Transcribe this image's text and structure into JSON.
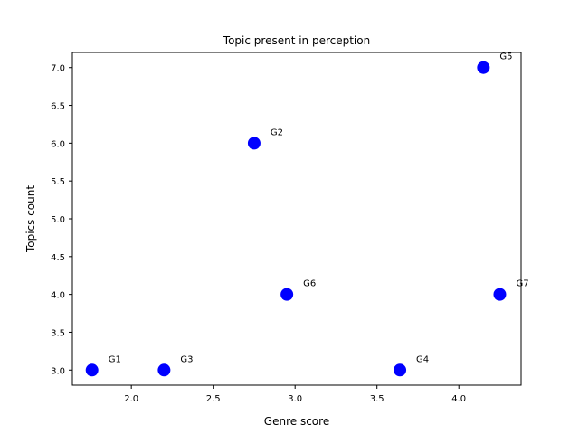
{
  "chart_data": {
    "type": "scatter",
    "title": "Topic present in perception",
    "xlabel": "Genre score",
    "ylabel": "Topics count",
    "xlim": [
      1.64,
      4.38
    ],
    "ylim": [
      2.8,
      7.2
    ],
    "xticks": [
      2.0,
      2.5,
      3.0,
      3.5,
      4.0
    ],
    "xtick_labels": [
      "2.0",
      "2.5",
      "3.0",
      "3.5",
      "4.0"
    ],
    "yticks": [
      3.0,
      3.5,
      4.0,
      4.5,
      5.0,
      5.5,
      6.0,
      6.5,
      7.0
    ],
    "ytick_labels": [
      "3.0",
      "3.5",
      "4.0",
      "4.5",
      "5.0",
      "5.5",
      "6.0",
      "6.5",
      "7.0"
    ],
    "grid": false,
    "legend": "none",
    "marker_color": "#0000ff",
    "points": [
      {
        "label": "G1",
        "x": 1.76,
        "y": 3.0
      },
      {
        "label": "G3",
        "x": 2.2,
        "y": 3.0
      },
      {
        "label": "G2",
        "x": 2.75,
        "y": 6.0
      },
      {
        "label": "G6",
        "x": 2.95,
        "y": 4.0
      },
      {
        "label": "G4",
        "x": 3.64,
        "y": 3.0
      },
      {
        "label": "G5",
        "x": 4.15,
        "y": 7.0
      },
      {
        "label": "G7",
        "x": 4.25,
        "y": 4.0
      }
    ]
  }
}
